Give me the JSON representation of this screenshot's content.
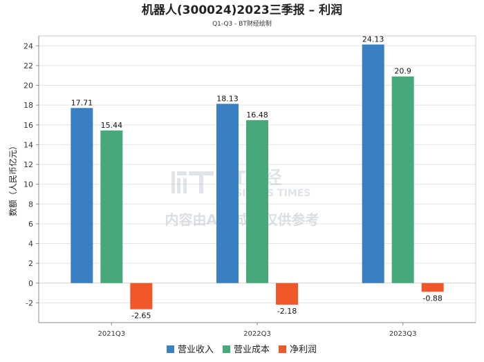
{
  "chart_data": {
    "type": "bar",
    "title": "机器人(300024)2023三季报 – 利润",
    "subtitle": "Q1-Q3 - BT财经绘制",
    "ylabel": "数额（人民币亿元）",
    "xlabel": "",
    "ylim": [
      -4,
      25
    ],
    "yticks": [
      -2,
      0,
      2,
      4,
      6,
      8,
      10,
      12,
      14,
      16,
      18,
      20,
      22,
      24
    ],
    "categories": [
      "2021Q3",
      "2022Q3",
      "2023Q3"
    ],
    "series": [
      {
        "name": "营业收入",
        "color": "#3a7fc1",
        "values": [
          17.71,
          18.13,
          24.13
        ]
      },
      {
        "name": "营业成本",
        "color": "#47a87a",
        "values": [
          15.44,
          16.48,
          20.9
        ]
      },
      {
        "name": "净利润",
        "color": "#f0582a",
        "values": [
          -2.65,
          -2.18,
          -0.88
        ]
      }
    ],
    "legend_position": "bottom-center",
    "grid": true
  },
  "watermark": {
    "brand": "BT财经",
    "brand_sub": "BUSINESS TIMES",
    "notice": "内容由AI生成，仅供参考"
  }
}
